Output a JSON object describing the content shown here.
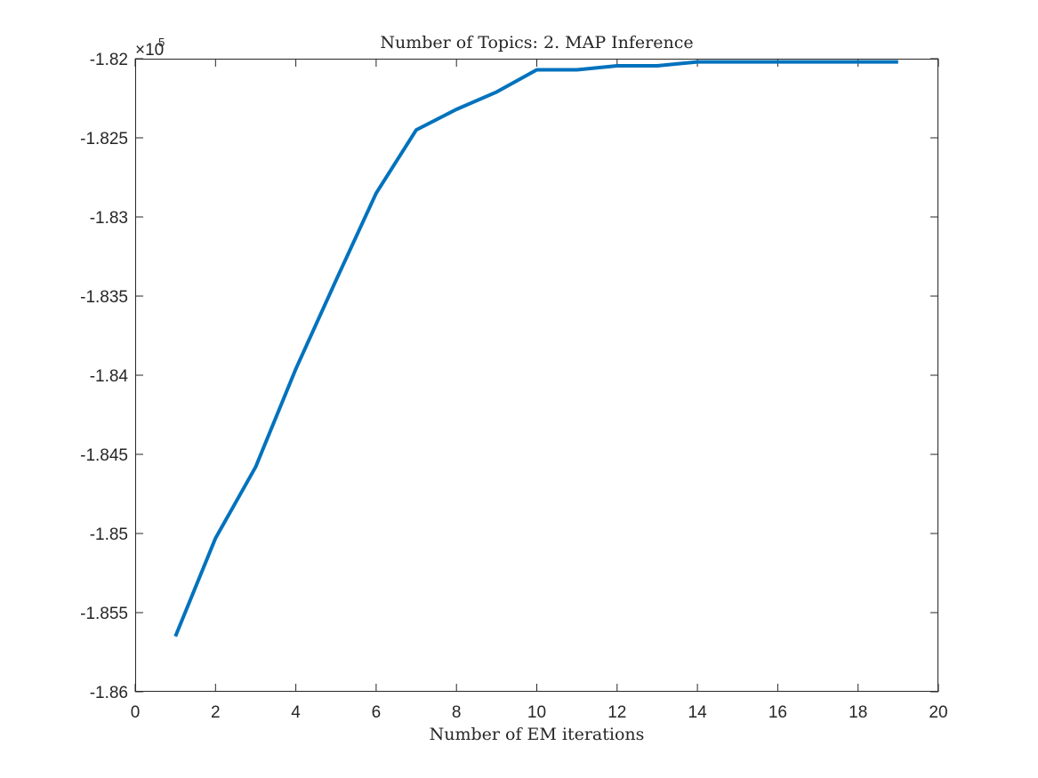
{
  "chart_data": {
    "type": "line",
    "title": "Number of Topics: 2. MAP Inference",
    "xlabel": "Number of EM iterations",
    "ylabel": "",
    "xlim": [
      0,
      20
    ],
    "ylim": [
      -186000,
      -182000
    ],
    "x_ticks": [
      0,
      2,
      4,
      6,
      8,
      10,
      12,
      14,
      16,
      18,
      20
    ],
    "x_tick_labels": [
      "0",
      "2",
      "4",
      "6",
      "8",
      "10",
      "12",
      "14",
      "16",
      "18",
      "20"
    ],
    "y_ticks": [
      -186000,
      -185500,
      -185000,
      -184500,
      -184000,
      -183500,
      -183000,
      -182500,
      -182000
    ],
    "y_tick_labels": [
      "-1.86",
      "-1.855",
      "-1.85",
      "-1.845",
      "-1.84",
      "-1.835",
      "-1.83",
      "-1.825",
      "-1.82"
    ],
    "y_exponent_base": "×10",
    "y_exponent_power": "5",
    "grid": false,
    "line_color": "#0072BD",
    "series": [
      {
        "x": [
          1,
          2,
          3,
          4,
          5,
          6,
          7,
          8,
          9,
          10,
          11,
          12,
          13,
          14,
          15,
          16,
          17,
          18,
          19
        ],
        "values": [
          -185650,
          -185030,
          -184580,
          -183960,
          -183400,
          -182850,
          -182450,
          -182320,
          -182210,
          -182070,
          -182070,
          -182045,
          -182045,
          -182020,
          -182020,
          -182020,
          -182020,
          -182020,
          -182020
        ]
      }
    ]
  }
}
